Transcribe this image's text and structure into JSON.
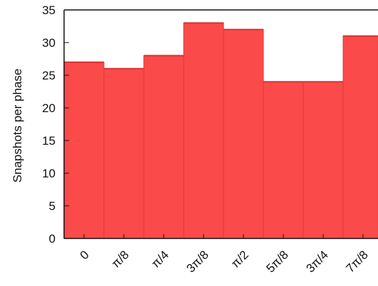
{
  "chart_data": {
    "type": "bar",
    "categories": [
      "0",
      "π/8",
      "π/4",
      "3π/8",
      "π/2",
      "5π/8",
      "3π/4",
      "7π/8"
    ],
    "values": [
      27,
      26,
      28,
      33,
      32,
      24,
      24,
      31
    ],
    "ylabel": "Snapshots per phase",
    "xlabel": "",
    "title": "",
    "ylim": [
      0,
      35
    ],
    "yticks": [
      0,
      5,
      10,
      15,
      20,
      25,
      30,
      35
    ],
    "grid": false,
    "legend": "none",
    "bar_color": "#fb4a4a",
    "bar_edge_color": "#e03838"
  }
}
